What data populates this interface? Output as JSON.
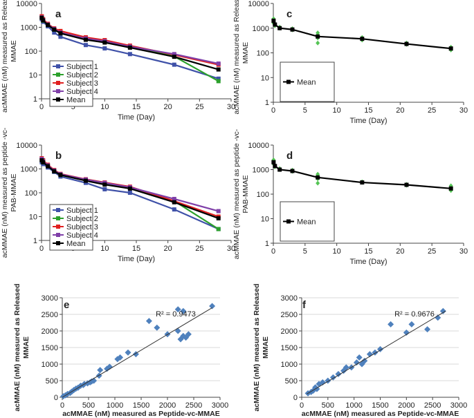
{
  "charts": [
    {
      "id": "a",
      "type": "line",
      "scale": "log",
      "ylabel_lines": [
        "acMMAE (nM) measured as Released",
        "MMAE"
      ],
      "xlabel": "Time (Day)",
      "yticks": [
        1,
        10,
        100,
        1000,
        10000
      ],
      "ytick_labels": [
        "1",
        "10",
        "100",
        "1000",
        "10000"
      ],
      "xticks": [
        0,
        5,
        10,
        15,
        20,
        25,
        30
      ],
      "xtick_labels": [
        "0",
        "5",
        "10",
        "15",
        "20",
        "25",
        "30"
      ],
      "xlim": [
        0,
        30
      ],
      "ylim": [
        1,
        10000
      ],
      "legend": [
        "Subject 1",
        "Subject 2",
        "Subject 3",
        "Subject 4",
        "Mean"
      ],
      "series": [
        {
          "name": "Subject 1",
          "color": "#3f51a8",
          "x": [
            0.04,
            0.25,
            1,
            2,
            3,
            7,
            10,
            14,
            21,
            28
          ],
          "y": [
            2200,
            1700,
            1100,
            600,
            400,
            180,
            130,
            75,
            27,
            7
          ]
        },
        {
          "name": "Subject 2",
          "color": "#2ca02c",
          "x": [
            0.04,
            0.25,
            1,
            2,
            3,
            7,
            10,
            14,
            21,
            28
          ],
          "y": [
            2500,
            1900,
            1250,
            800,
            560,
            330,
            250,
            160,
            60,
            5.5
          ]
        },
        {
          "name": "Subject 3",
          "color": "#e02020",
          "x": [
            0.04,
            0.25,
            1,
            2,
            3,
            7,
            10,
            14,
            21,
            28
          ],
          "y": [
            2900,
            2200,
            1400,
            900,
            700,
            380,
            290,
            170,
            70,
            27
          ]
        },
        {
          "name": "Subject 4",
          "color": "#7f3fa8",
          "x": [
            0.04,
            0.25,
            1,
            2,
            3,
            7,
            10,
            14,
            21,
            28
          ],
          "y": [
            2600,
            2000,
            1300,
            850,
            600,
            340,
            260,
            155,
            75,
            30
          ]
        },
        {
          "name": "Mean",
          "color": "#000000",
          "x": [
            0.04,
            0.25,
            1,
            2,
            3,
            7,
            10,
            14,
            21,
            28
          ],
          "y": [
            2500,
            1950,
            1250,
            800,
            560,
            300,
            230,
            140,
            58,
            17
          ]
        }
      ]
    },
    {
      "id": "b",
      "type": "line",
      "scale": "log",
      "ylabel_lines": [
        "acMMAE (nM) measured as peptide -vc-",
        "PAB-MMAE"
      ],
      "xlabel": "Time (Day)",
      "yticks": [
        1,
        10,
        100,
        1000,
        10000
      ],
      "ytick_labels": [
        "1",
        "10",
        "100",
        "1000",
        "10000"
      ],
      "xticks": [
        0,
        5,
        10,
        15,
        20,
        25,
        30
      ],
      "xtick_labels": [
        "0",
        "5",
        "10",
        "15",
        "20",
        "25",
        "30"
      ],
      "xlim": [
        0,
        30
      ],
      "ylim": [
        1,
        10000
      ],
      "legend": [
        "Subject 1",
        "Subject 2",
        "Subject 3",
        "Subject 4",
        "Mean"
      ],
      "series": [
        {
          "name": "Subject 1",
          "color": "#3f51a8",
          "x": [
            0.04,
            0.25,
            1,
            2,
            3,
            7,
            10,
            14,
            21,
            28
          ],
          "y": [
            1900,
            1600,
            1150,
            750,
            480,
            260,
            140,
            100,
            20,
            3
          ]
        },
        {
          "name": "Subject 2",
          "color": "#2ca02c",
          "x": [
            0.04,
            0.25,
            1,
            2,
            3,
            7,
            10,
            14,
            21,
            28
          ],
          "y": [
            2300,
            1900,
            1350,
            800,
            560,
            330,
            240,
            160,
            45,
            3
          ]
        },
        {
          "name": "Subject 3",
          "color": "#e02020",
          "x": [
            0.04,
            0.25,
            1,
            2,
            3,
            7,
            10,
            14,
            21,
            28
          ],
          "y": [
            2800,
            2300,
            1500,
            900,
            620,
            370,
            270,
            180,
            45,
            10
          ]
        },
        {
          "name": "Subject 4",
          "color": "#7f3fa8",
          "x": [
            0.04,
            0.25,
            1,
            2,
            3,
            7,
            10,
            14,
            21,
            28
          ],
          "y": [
            2600,
            2100,
            1400,
            850,
            600,
            360,
            260,
            170,
            55,
            17
          ]
        },
        {
          "name": "Mean",
          "color": "#000000",
          "x": [
            0.04,
            0.25,
            1,
            2,
            3,
            7,
            10,
            14,
            21,
            28
          ],
          "y": [
            2300,
            1900,
            1300,
            800,
            560,
            320,
            220,
            150,
            40,
            8.5
          ]
        }
      ]
    },
    {
      "id": "c",
      "type": "line",
      "scale": "log",
      "ylabel_lines": [
        "acMMAE (nM) measured as Released",
        "MMAE"
      ],
      "xlabel": "Time (Day)",
      "yticks": [
        1,
        10,
        100,
        1000,
        10000
      ],
      "ytick_labels": [
        "1",
        "10",
        "100",
        "1000",
        "10000"
      ],
      "xticks": [
        0,
        5,
        10,
        15,
        20,
        25,
        30
      ],
      "xtick_labels": [
        "0",
        "5",
        "10",
        "15",
        "20",
        "25",
        "30"
      ],
      "xlim": [
        0,
        30
      ],
      "ylim": [
        1,
        10000
      ],
      "legend": [
        "Mean"
      ],
      "scatter_color": "#55c455",
      "scatter": {
        "x": [
          0.04,
          0.04,
          0.04,
          0.25,
          0.25,
          1,
          1,
          3,
          3,
          7,
          7,
          7,
          7,
          14,
          14,
          14,
          21,
          21,
          28,
          28,
          28
        ],
        "y": [
          2400,
          2000,
          1600,
          1500,
          1250,
          1100,
          1000,
          950,
          850,
          650,
          520,
          400,
          250,
          420,
          380,
          330,
          250,
          220,
          170,
          150,
          130
        ]
      },
      "series": [
        {
          "name": "Mean",
          "color": "#000000",
          "x": [
            0.04,
            0.25,
            1,
            3,
            7,
            14,
            21,
            28
          ],
          "y": [
            2000,
            1400,
            1000,
            880,
            460,
            370,
            230,
            150
          ]
        }
      ]
    },
    {
      "id": "d",
      "type": "line",
      "scale": "log",
      "ylabel_lines": [
        "acMMAE (nM) measured as peptide -vc-",
        "PAB-MMAE"
      ],
      "xlabel": "Time (Day)",
      "yticks": [
        1,
        10,
        100,
        1000,
        10000
      ],
      "ytick_labels": [
        "1",
        "10",
        "100",
        "1000",
        "10000"
      ],
      "xticks": [
        0,
        5,
        10,
        15,
        20,
        25,
        30
      ],
      "xtick_labels": [
        "0",
        "5",
        "10",
        "15",
        "20",
        "25",
        "30"
      ],
      "xlim": [
        0,
        30
      ],
      "ylim": [
        1,
        10000
      ],
      "legend": [
        "Mean"
      ],
      "scatter_color": "#55c455",
      "scatter": {
        "x": [
          0.04,
          0.04,
          0.04,
          0.25,
          0.25,
          1,
          1,
          3,
          3,
          7,
          7,
          7,
          7,
          14,
          14,
          21,
          21,
          28,
          28,
          28
        ],
        "y": [
          2500,
          2000,
          1700,
          1500,
          1300,
          1100,
          1000,
          950,
          850,
          650,
          550,
          420,
          280,
          320,
          300,
          250,
          230,
          220,
          170,
          140
        ]
      },
      "series": [
        {
          "name": "Mean",
          "color": "#000000",
          "x": [
            0.04,
            0.25,
            1,
            3,
            7,
            14,
            21,
            28
          ],
          "y": [
            2000,
            1400,
            1000,
            880,
            480,
            300,
            240,
            170
          ]
        }
      ]
    },
    {
      "id": "e",
      "type": "scatter",
      "scale": "linear",
      "ylabel_lines": [
        "acMMAE (nM) measured as Released",
        "MMAE"
      ],
      "xlabel": "acMMAE (nM) measured as Peptide-vc-MMAE",
      "yticks": [
        0,
        500,
        1000,
        1500,
        2000,
        2500,
        3000
      ],
      "ytick_labels": [
        "0",
        "500",
        "1000",
        "1500",
        "2000",
        "2500",
        "3000"
      ],
      "xticks": [
        0,
        500,
        1000,
        1500,
        2000,
        2500,
        3000
      ],
      "xtick_labels": [
        "0",
        "500",
        "1000",
        "1500",
        "2000",
        "2500",
        "3000"
      ],
      "xlim": [
        0,
        3000
      ],
      "ylim": [
        0,
        3000
      ],
      "annotation": "R² = 0.9473",
      "point_color": "#4f81bd",
      "points": {
        "x": [
          20,
          60,
          100,
          150,
          180,
          220,
          260,
          300,
          350,
          400,
          420,
          480,
          530,
          560,
          600,
          700,
          720,
          850,
          900,
          1050,
          1100,
          1250,
          1400,
          1650,
          1800,
          2000,
          2200,
          2250,
          2300,
          2350,
          2400,
          2300,
          2200,
          2850
        ],
        "y": [
          30,
          60,
          100,
          130,
          170,
          220,
          260,
          290,
          350,
          370,
          400,
          420,
          450,
          480,
          500,
          650,
          820,
          860,
          920,
          1150,
          1200,
          1350,
          1300,
          2300,
          2100,
          1900,
          2000,
          1750,
          1850,
          1800,
          1900,
          2600,
          2650,
          2750
        ]
      },
      "trend": {
        "x": [
          0,
          2850
        ],
        "y": [
          0,
          2700
        ]
      }
    },
    {
      "id": "f",
      "type": "scatter",
      "scale": "linear",
      "ylabel_lines": [
        "acMMAE (nM) measured as Released",
        "MMAE"
      ],
      "xlabel": "acMMAE (nM) measured as Peptide-vc-MMAE",
      "yticks": [
        0,
        500,
        1000,
        1500,
        2000,
        2500,
        3000
      ],
      "ytick_labels": [
        "0",
        "500",
        "1000",
        "1500",
        "2000",
        "2500",
        "3000"
      ],
      "xticks": [
        0,
        500,
        1000,
        1500,
        2000,
        2500,
        3000
      ],
      "xtick_labels": [
        "0",
        "500",
        "1000",
        "1500",
        "2000",
        "2500",
        "3000"
      ],
      "xlim": [
        0,
        3000
      ],
      "ylim": [
        0,
        3000
      ],
      "annotation": "R² = 0.9676",
      "point_color": "#4f81bd",
      "points": {
        "x": [
          120,
          180,
          220,
          260,
          290,
          330,
          400,
          500,
          600,
          700,
          800,
          850,
          950,
          1050,
          1100,
          1150,
          1200,
          1300,
          1400,
          1500,
          1700,
          2000,
          2100,
          2400,
          2600,
          2700
        ],
        "y": [
          120,
          160,
          200,
          300,
          250,
          400,
          450,
          500,
          600,
          700,
          800,
          900,
          900,
          1050,
          1200,
          1000,
          1100,
          1300,
          1350,
          1450,
          2200,
          1950,
          2200,
          2050,
          2400,
          2600
        ]
      },
      "trend": {
        "x": [
          100,
          2750
        ],
        "y": [
          100,
          2600
        ]
      }
    }
  ]
}
